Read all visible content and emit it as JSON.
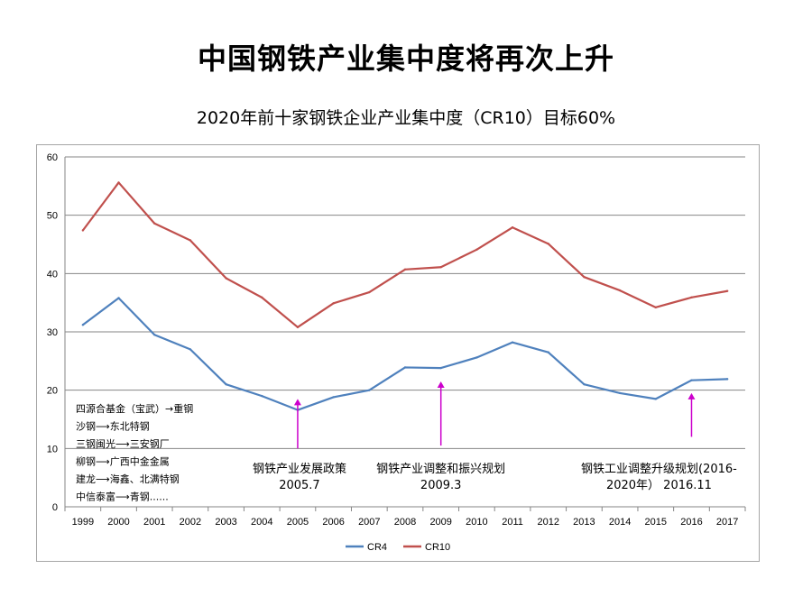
{
  "page": {
    "title": "中国钢铁产业集中度将再次上升",
    "subtitle": "2020年前十家钢铁企业产业集中度（CR10）目标60%"
  },
  "chart_data": {
    "type": "line",
    "categories": [
      "1999",
      "2000",
      "2001",
      "2002",
      "2003",
      "2004",
      "2005",
      "2006",
      "2007",
      "2008",
      "2009",
      "2010",
      "2011",
      "2012",
      "2013",
      "2014",
      "2015",
      "2016",
      "2017"
    ],
    "series": [
      {
        "name": "CR4",
        "color": "#4f81bd",
        "values": [
          31.2,
          35.8,
          29.5,
          27.0,
          21.0,
          19.0,
          16.6,
          18.8,
          20.0,
          23.9,
          23.8,
          25.6,
          28.2,
          26.5,
          21.0,
          19.5,
          18.5,
          21.7,
          21.9
        ]
      },
      {
        "name": "CR10",
        "color": "#c0504d",
        "values": [
          47.4,
          55.6,
          48.6,
          45.7,
          39.2,
          35.9,
          30.8,
          34.9,
          36.8,
          40.7,
          41.1,
          44.1,
          47.9,
          45.1,
          39.4,
          37.1,
          34.2,
          35.9,
          37.0
        ]
      }
    ],
    "ylim": [
      0,
      60
    ],
    "yticks": [
      "0",
      "10",
      "20",
      "30",
      "40",
      "50",
      "60"
    ],
    "grid": true,
    "legend": "bottom",
    "merger_notes": [
      "四源合基金（宝武）→重钢",
      "沙钢⟶东北特钢",
      "三钢闽光⟶三安钢厂",
      "柳钢⟶广西中金金属",
      "建龙⟶海鑫、北满特钢",
      "中信泰富⟶青钢......"
    ],
    "annotations": [
      {
        "lines": [
          "钢铁产业发展政策",
          "2005.7"
        ],
        "x_index": 6,
        "arrow_from": 10,
        "arrow_to": 18.5,
        "arrow_color": "#cc00cc"
      },
      {
        "lines": [
          "钢铁产业调整和振兴规划",
          "2009.3"
        ],
        "x_index": 10,
        "arrow_from": 10.5,
        "arrow_to": 21.5,
        "arrow_color": "#cc00cc"
      },
      {
        "lines": [
          "钢铁工业调整升级规划(2016-",
          "2020年）  2016.11"
        ],
        "x_index": 17,
        "arrow_from": 12,
        "arrow_to": 19.5,
        "arrow_color": "#cc00cc"
      }
    ]
  }
}
